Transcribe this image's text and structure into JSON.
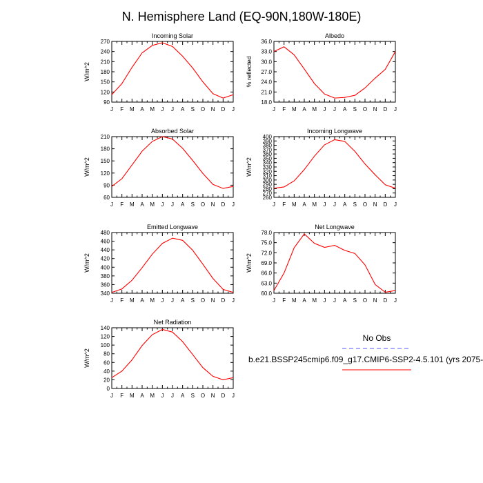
{
  "figure": {
    "title": "N. Hemisphere Land (EQ-90N,180W-180E)"
  },
  "legend": {
    "obs_label": "No Obs",
    "model_label": "b.e21.BSSP245cmip6.f09_g17.CMIP6-SSP2-4.5.101 (yrs 2075-",
    "obs_color": "#5a5aff",
    "model_color": "#ff0000"
  },
  "chart_data": [
    {
      "type": "line",
      "title": "Incoming Solar",
      "ylabel": "W/m^2",
      "ylim": [
        90,
        270
      ],
      "yticks": [
        "90",
        "120",
        "150",
        "180",
        "210",
        "240",
        "270"
      ],
      "x": [
        "J",
        "F",
        "M",
        "A",
        "M",
        "J",
        "J",
        "A",
        "S",
        "O",
        "N",
        "D",
        "J"
      ],
      "series": [
        {
          "name": "model",
          "values": [
            112,
            145,
            193,
            236,
            258,
            266,
            255,
            226,
            191,
            150,
            115,
            102,
            112
          ]
        }
      ]
    },
    {
      "type": "line",
      "title": "Albedo",
      "ylabel": "% reflected",
      "ylim": [
        18.0,
        36.0
      ],
      "yticks": [
        "18.0",
        "21.0",
        "24.0",
        "27.0",
        "30.0",
        "33.0",
        "36.0"
      ],
      "x": [
        "J",
        "F",
        "M",
        "A",
        "M",
        "J",
        "J",
        "A",
        "S",
        "O",
        "N",
        "D",
        "J"
      ],
      "series": [
        {
          "name": "model",
          "values": [
            33.0,
            34.4,
            32.0,
            27.8,
            23.5,
            20.4,
            19.2,
            19.4,
            20.0,
            22.2,
            25.1,
            27.7,
            33.0
          ]
        }
      ]
    },
    {
      "type": "line",
      "title": "Absorbed Solar",
      "ylabel": "W/m^2",
      "ylim": [
        60,
        210
      ],
      "yticks": [
        "60",
        "90",
        "120",
        "150",
        "180",
        "210"
      ],
      "x": [
        "J",
        "F",
        "M",
        "A",
        "M",
        "J",
        "J",
        "A",
        "S",
        "O",
        "N",
        "D",
        "J"
      ],
      "series": [
        {
          "name": "model",
          "values": [
            87,
            106,
            140,
            174,
            198,
            210,
            204,
            181,
            151,
            119,
            92,
            82,
            87
          ]
        }
      ]
    },
    {
      "type": "line",
      "title": "Incoming Longwave",
      "ylabel": "W/m^2",
      "ylim": [
        260,
        400
      ],
      "yticks": [
        "260",
        "270",
        "280",
        "290",
        "300",
        "310",
        "320",
        "330",
        "340",
        "350",
        "360",
        "370",
        "380",
        "390",
        "400"
      ],
      "x": [
        "J",
        "F",
        "M",
        "A",
        "M",
        "J",
        "J",
        "A",
        "S",
        "O",
        "N",
        "D",
        "J"
      ],
      "series": [
        {
          "name": "model",
          "values": [
            281,
            284,
            298,
            324,
            355,
            381,
            393,
            389,
            366,
            337,
            312,
            289,
            281
          ]
        }
      ]
    },
    {
      "type": "line",
      "title": "Emitted Longwave",
      "ylabel": "W/m^2",
      "ylim": [
        340,
        480
      ],
      "yticks": [
        "340",
        "360",
        "380",
        "400",
        "420",
        "440",
        "460",
        "480"
      ],
      "x": [
        "J",
        "F",
        "M",
        "A",
        "M",
        "J",
        "J",
        "A",
        "S",
        "O",
        "N",
        "D",
        "J"
      ],
      "series": [
        {
          "name": "model",
          "values": [
            342,
            350,
            370,
            399,
            430,
            455,
            467,
            462,
            439,
            407,
            374,
            349,
            342
          ]
        }
      ]
    },
    {
      "type": "line",
      "title": "Net Longwave",
      "ylabel": "W/m^2",
      "ylim": [
        60.0,
        78.0
      ],
      "yticks": [
        "60.0",
        "63.0",
        "66.0",
        "69.0",
        "72.0",
        "75.0",
        "78.0"
      ],
      "x": [
        "J",
        "F",
        "M",
        "A",
        "M",
        "J",
        "J",
        "A",
        "S",
        "O",
        "N",
        "D",
        "J"
      ],
      "series": [
        {
          "name": "model",
          "values": [
            60.8,
            66.0,
            73.5,
            77.6,
            74.8,
            73.6,
            74.2,
            72.7,
            71.8,
            68.4,
            62.6,
            60.3,
            60.8
          ]
        }
      ]
    },
    {
      "type": "line",
      "title": "Net Radiation",
      "ylabel": "W/m^2",
      "ylim": [
        0,
        140
      ],
      "yticks": [
        "0",
        "20",
        "40",
        "60",
        "80",
        "100",
        "120",
        "140"
      ],
      "x": [
        "J",
        "F",
        "M",
        "A",
        "M",
        "J",
        "J",
        "A",
        "S",
        "O",
        "N",
        "D",
        "J"
      ],
      "series": [
        {
          "name": "model",
          "values": [
            25,
            40,
            66,
            99,
            124,
            136,
            130,
            108,
            78,
            48,
            28,
            20,
            25
          ]
        }
      ]
    }
  ]
}
